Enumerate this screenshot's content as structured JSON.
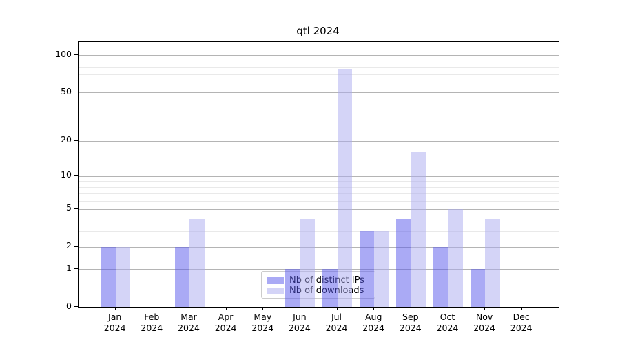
{
  "title": "qtl 2024",
  "chart_data": {
    "type": "bar",
    "title": "qtl 2024",
    "categories": [
      "Jan",
      "Feb",
      "Mar",
      "Apr",
      "May",
      "Jun",
      "Jul",
      "Aug",
      "Sep",
      "Oct",
      "Nov",
      "Dec"
    ],
    "year_label": "2024",
    "series": [
      {
        "name": "Nb of distinct IPs",
        "color": "rgba(85,85,235,0.5)",
        "values": [
          2,
          0,
          2,
          0,
          0,
          1,
          1,
          3,
          4,
          2,
          1,
          0
        ]
      },
      {
        "name": "Nb of downloads",
        "color": "rgba(170,170,240,0.5)",
        "values": [
          2,
          0,
          4,
          0,
          0,
          4,
          77,
          3,
          16,
          5,
          4,
          0
        ]
      }
    ],
    "xlabel": "",
    "ylabel": "",
    "y_scale": "log10(value+1)",
    "y_major_ticks": [
      0,
      1,
      2,
      5,
      10,
      20,
      50,
      100
    ],
    "y_minor_ticks": [
      3,
      4,
      6,
      7,
      8,
      9,
      30,
      40,
      60,
      70,
      80,
      90
    ],
    "ylim": [
      0,
      127
    ],
    "grid": "both",
    "legend_position": "lower center"
  },
  "colors": {
    "background": "#ffffff",
    "spine": "#000000",
    "grid_major": "#b4b4b4",
    "grid_minor": "#e9e9e9",
    "bar_ips": "rgba(85,85,235,0.5)",
    "bar_downloads": "rgba(170,170,240,0.5)",
    "text": "#000000"
  }
}
